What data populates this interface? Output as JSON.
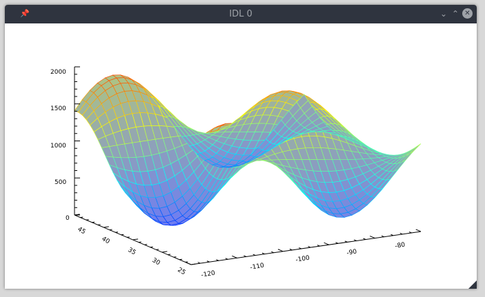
{
  "window": {
    "title": "IDL 0",
    "pin_icon": "pin-icon",
    "minimize_icon": "chevron-down-icon",
    "maximize_icon": "chevron-up-icon",
    "close_icon": "close-icon"
  },
  "chart_data": {
    "type": "surface",
    "title": "",
    "xlabel": "",
    "ylabel": "",
    "zlabel": "",
    "x_ticks": [
      "-120",
      "-110",
      "-100",
      "-90",
      "-80"
    ],
    "y_ticks": [
      "45",
      "40",
      "35",
      "30",
      "25"
    ],
    "z_ticks": [
      "0",
      "500",
      "1000",
      "1500",
      "2000"
    ],
    "zlim": [
      0,
      2000
    ],
    "colormap": [
      "#0000ff",
      "#00ffff",
      "#ffff00",
      "#ff0000"
    ],
    "shading": "gray-gradient",
    "mesh": true
  }
}
